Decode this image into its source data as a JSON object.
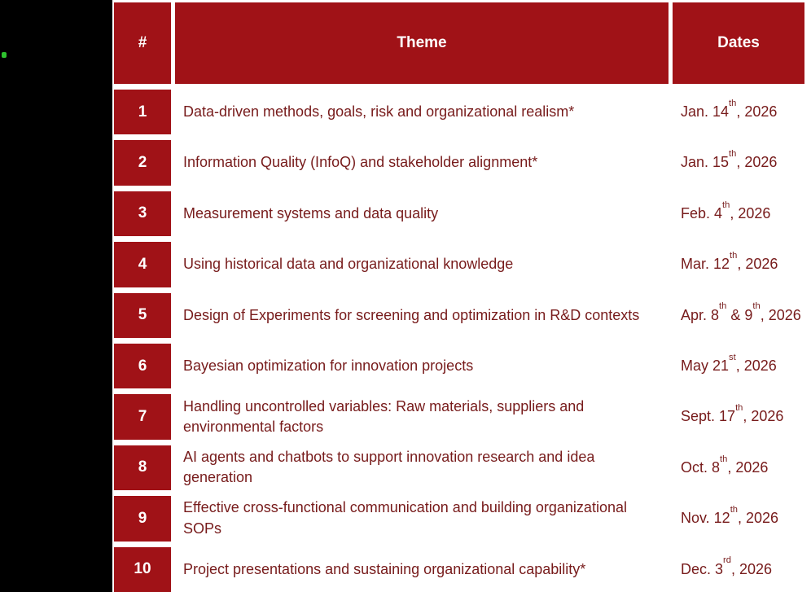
{
  "colors": {
    "page_bg": "#000000",
    "table_bg": "#FFFFFF",
    "header_bg": "#A01217",
    "number_bg": "#A01217",
    "header_text": "#FFFFFF",
    "body_text": "#771B1B",
    "row_odd_bg": "#D8C9C9",
    "row_even_bg": "#F2EAEA",
    "dot_green": "#2EC22E"
  },
  "table": {
    "headers": {
      "num": "#",
      "theme": "Theme",
      "dates": "Dates"
    },
    "rows": [
      {
        "num": "1",
        "theme": "Data-driven methods, goals, risk and organizational realism*",
        "date": [
          {
            "t": "Jan. 14"
          },
          {
            "sup": "th"
          },
          {
            "t": ", 2026"
          }
        ]
      },
      {
        "num": "2",
        "theme": "Information Quality (InfoQ) and stakeholder alignment*",
        "date": [
          {
            "t": "Jan. 15"
          },
          {
            "sup": "th"
          },
          {
            "t": ", 2026"
          }
        ]
      },
      {
        "num": "3",
        "theme": "Measurement systems and data quality",
        "date": [
          {
            "t": "Feb. 4"
          },
          {
            "sup": "th"
          },
          {
            "t": ", 2026"
          }
        ]
      },
      {
        "num": "4",
        "theme": "Using historical data and organizational knowledge",
        "date": [
          {
            "t": "Mar. 12"
          },
          {
            "sup": "th"
          },
          {
            "t": ", 2026"
          }
        ]
      },
      {
        "num": "5",
        "theme": "Design of Experiments for screening and optimization in R&D contexts",
        "date": [
          {
            "t": "Apr. 8"
          },
          {
            "sup": "th"
          },
          {
            "t": " & 9"
          },
          {
            "sup": "th"
          },
          {
            "t": ", 2026"
          }
        ]
      },
      {
        "num": "6",
        "theme": "Bayesian optimization for innovation projects",
        "date": [
          {
            "t": "May 21"
          },
          {
            "sup": "st"
          },
          {
            "t": ", 2026"
          }
        ]
      },
      {
        "num": "7",
        "theme": "Handling uncontrolled variables: Raw materials, suppliers and environmental factors",
        "date": [
          {
            "t": "Sept. 17"
          },
          {
            "sup": "th"
          },
          {
            "t": ", 2026"
          }
        ]
      },
      {
        "num": "8",
        "theme": "AI agents and chatbots to support innovation research and idea generation",
        "date": [
          {
            "t": "Oct. 8"
          },
          {
            "sup": "th"
          },
          {
            "t": ", 2026"
          }
        ]
      },
      {
        "num": "9",
        "theme": "Effective cross-functional communication and building organizational SOPs",
        "date": [
          {
            "t": "Nov. 12"
          },
          {
            "sup": "th"
          },
          {
            "t": ", 2026"
          }
        ]
      },
      {
        "num": "10",
        "theme": "Project presentations and sustaining organizational capability*",
        "date": [
          {
            "t": "Dec. 3"
          },
          {
            "sup": "rd"
          },
          {
            "t": ", 2026"
          }
        ]
      }
    ]
  }
}
